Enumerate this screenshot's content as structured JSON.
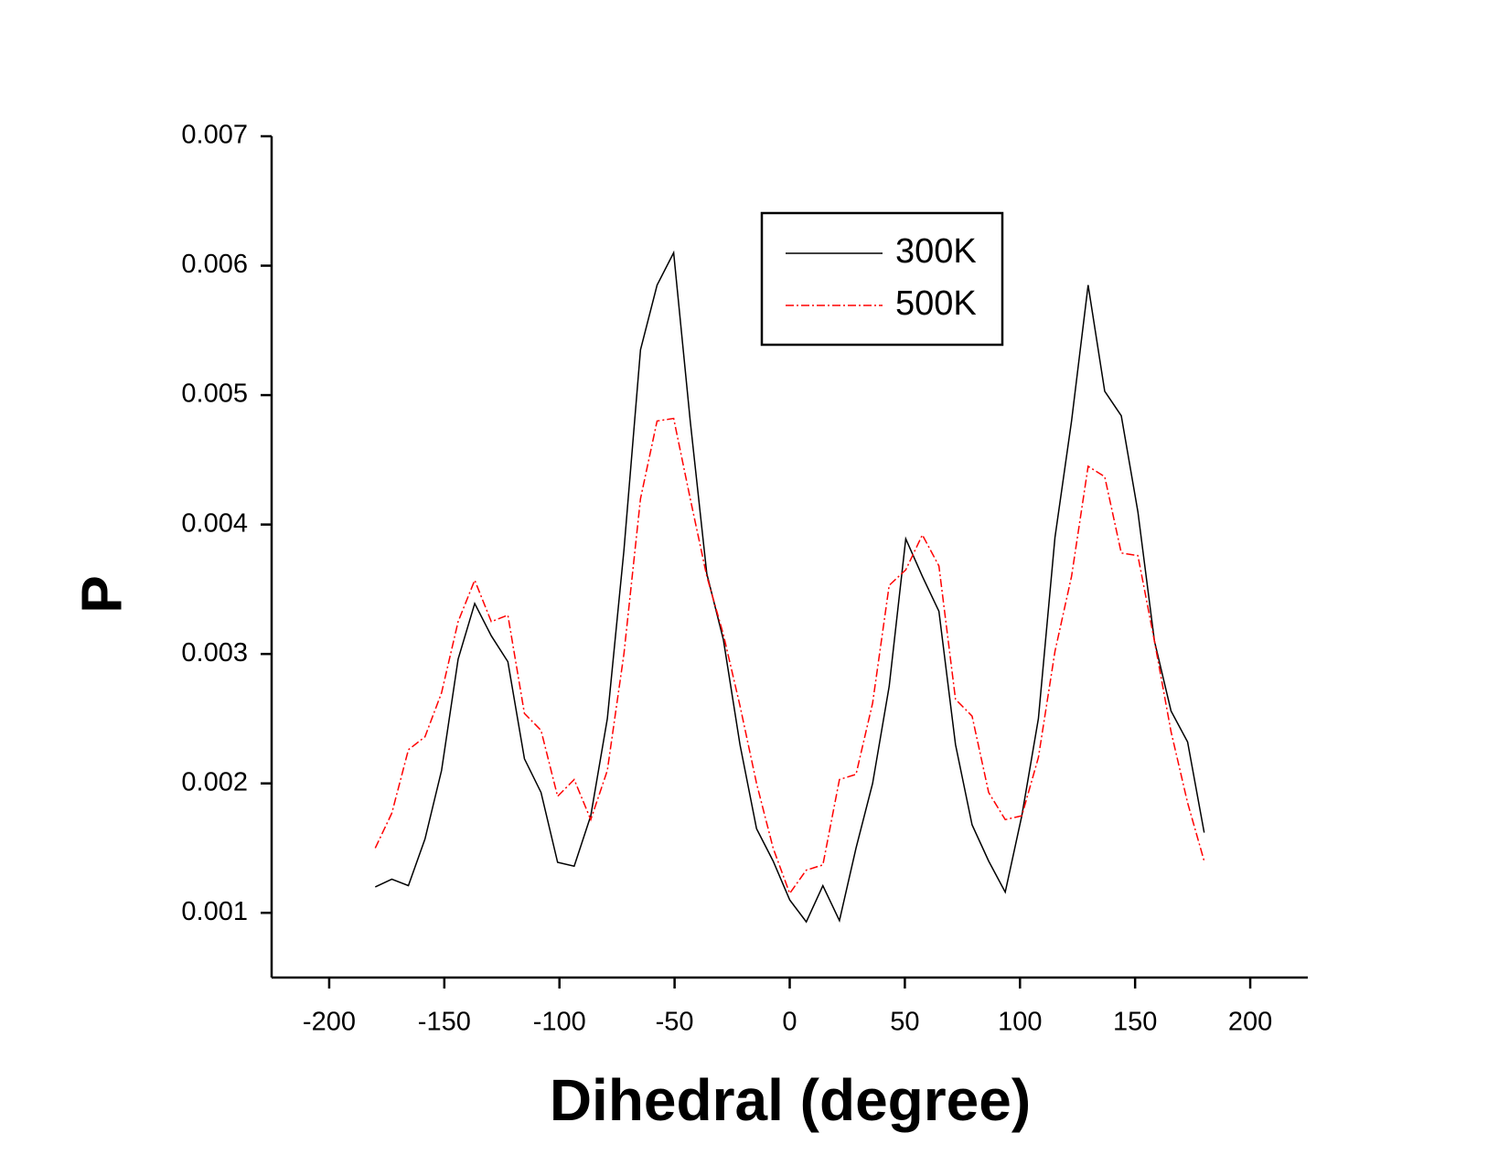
{
  "chart_data": {
    "type": "line",
    "x_label": "Dihedral (degree)",
    "y_label": "P",
    "x": [
      -180,
      -172.8,
      -165.6,
      -158.4,
      -151.2,
      -144,
      -136.8,
      -129.6,
      -122.4,
      -115.2,
      -108,
      -100.8,
      -93.6,
      -86.4,
      -79.2,
      -72,
      -64.8,
      -57.6,
      -50.4,
      -43.2,
      -36,
      -28.8,
      -21.6,
      -14.4,
      -7.2,
      0,
      7.2,
      14.4,
      21.6,
      28.8,
      36,
      43.2,
      50.4,
      57.6,
      64.8,
      72,
      79.2,
      86.4,
      93.6,
      100.8,
      108,
      115.2,
      122.4,
      129.6,
      136.8,
      144,
      151.2,
      158.4,
      165.6,
      172.8,
      180
    ],
    "series": [
      {
        "name": "300K",
        "color": "#000000",
        "dash": "solid",
        "values": [
          0.0012,
          0.00126,
          0.00121,
          0.00157,
          0.0021,
          0.00296,
          0.00339,
          0.00314,
          0.00294,
          0.00219,
          0.00193,
          0.00139,
          0.00136,
          0.00175,
          0.0025,
          0.0038,
          0.00535,
          0.00585,
          0.0061,
          0.0048,
          0.00362,
          0.00311,
          0.0023,
          0.00165,
          0.0014,
          0.0011,
          0.00093,
          0.00121,
          0.00094,
          0.0015,
          0.002,
          0.00275,
          0.00389,
          0.0036,
          0.00333,
          0.0023,
          0.00168,
          0.0014,
          0.00116,
          0.00175,
          0.0025,
          0.0039,
          0.0048,
          0.00585,
          0.00503,
          0.00484,
          0.0041,
          0.0031,
          0.00256,
          0.00232,
          0.00162
        ]
      },
      {
        "name": "500K",
        "color": "#ff0000",
        "dash": "dashdot",
        "values": [
          0.0015,
          0.00177,
          0.00226,
          0.00236,
          0.0027,
          0.00325,
          0.00357,
          0.00325,
          0.0033,
          0.00254,
          0.00241,
          0.0019,
          0.00203,
          0.00172,
          0.0021,
          0.003,
          0.0042,
          0.0048,
          0.00482,
          0.0042,
          0.0036,
          0.00315,
          0.0026,
          0.002,
          0.0015,
          0.00115,
          0.00133,
          0.00137,
          0.00203,
          0.00207,
          0.00262,
          0.00353,
          0.00365,
          0.00392,
          0.00368,
          0.00265,
          0.00252,
          0.00193,
          0.00172,
          0.00175,
          0.0022,
          0.00302,
          0.0036,
          0.00445,
          0.00437,
          0.00378,
          0.00376,
          0.0031,
          0.0024,
          0.00185,
          0.0014
        ]
      }
    ],
    "xlim": [
      -225,
      225
    ],
    "xticks": [
      -200,
      -150,
      -100,
      -50,
      0,
      50,
      100,
      150,
      200
    ],
    "ylim": [
      0.0005,
      0.007
    ],
    "yticks": [
      0.001,
      0.002,
      0.003,
      0.004,
      0.005,
      0.006,
      0.007
    ],
    "grid": false,
    "legend": "upper-center"
  }
}
